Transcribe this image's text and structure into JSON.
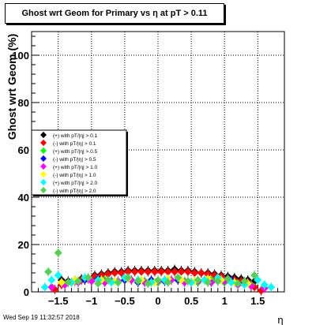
{
  "title": "Ghost wrt Geom for Primary vs    η at pT > 0.11",
  "date": "Wed Sep 19 11:32:57 2018",
  "chart_data": {
    "type": "scatter",
    "title": "Ghost wrt Geom for Primary vs    η at pT > 0.11",
    "xlabel": "η",
    "ylabel": "Ghost wrt Geom (%)",
    "xlim": [
      -1.9,
      1.9
    ],
    "ylim": [
      0,
      110
    ],
    "xticks": [
      -1.5,
      -1,
      -0.5,
      0,
      0.5,
      1,
      1.5
    ],
    "xtick_labels": [
      "−1.5",
      "−1",
      "−0.5",
      "0",
      "0.5",
      "1",
      "1.5"
    ],
    "yticks": [
      0,
      20,
      40,
      60,
      80,
      100
    ],
    "ytick_labels": [
      "0",
      "20",
      "40",
      "60",
      "80",
      "100"
    ],
    "grid": true,
    "legend_position": "middle-left",
    "series": [
      {
        "name": "(+) with pT/|η| > 0.1",
        "color": "#000000",
        "x": [
          -1.45,
          -1.35,
          -1.25,
          -1.15,
          -1.05,
          -0.95,
          -0.85,
          -0.75,
          -0.65,
          -0.55,
          -0.45,
          -0.35,
          -0.25,
          -0.15,
          -0.05,
          0.05,
          0.15,
          0.25,
          0.35,
          0.45,
          0.55,
          0.65,
          0.75,
          0.85,
          0.95,
          1.05,
          1.15,
          1.25,
          1.35,
          1.45
        ],
        "y": [
          5,
          4.5,
          5,
          5.5,
          6,
          7,
          7.5,
          8,
          8.5,
          8.5,
          9,
          9,
          9,
          9,
          9,
          9,
          9,
          9.5,
          9,
          9,
          8.5,
          8,
          8,
          7.5,
          7,
          6.5,
          6,
          5.5,
          5,
          4.5
        ]
      },
      {
        "name": "(-) with pT/|η| > 0.1",
        "color": "#ff0000",
        "x": [
          -1.55,
          -1.45,
          -1.35,
          -1.25,
          -1.15,
          -1.05,
          -0.95,
          -0.85,
          -0.75,
          -0.65,
          -0.55,
          -0.45,
          -0.35,
          -0.25,
          -0.15,
          -0.05,
          0.05,
          0.15,
          0.25,
          0.35,
          0.45,
          0.55,
          0.65,
          0.75,
          0.85,
          0.95,
          1.05,
          1.15,
          1.25,
          1.35,
          1.45,
          1.55
        ],
        "y": [
          1,
          3,
          4,
          4.5,
          5,
          5.5,
          6.5,
          7,
          7.5,
          8,
          8,
          8.5,
          8.5,
          8.5,
          8.5,
          8.5,
          8.5,
          8.5,
          8.5,
          8.5,
          8.5,
          8,
          8,
          7.5,
          7,
          6.5,
          5.5,
          5,
          4.5,
          4,
          2,
          0.5
        ]
      },
      {
        "name": "(+) with pT/|η| > 0.5",
        "color": "#00ff00",
        "x": [
          -1.4,
          -1.2,
          -1.0,
          -0.8,
          -0.6,
          -0.4,
          -0.2,
          0.0,
          0.2,
          0.4,
          0.6,
          0.8,
          1.0,
          1.2,
          1.4
        ],
        "y": [
          3,
          4,
          4.5,
          5,
          4,
          5,
          4.5,
          4,
          5,
          4.5,
          4,
          5,
          4,
          3.5,
          3
        ]
      },
      {
        "name": "(-) with pT/|η| > 0.5",
        "color": "#0000ff",
        "x": [
          -1.3,
          -1.1,
          -0.9,
          -0.7,
          -0.5,
          -0.3,
          -0.1,
          0.1,
          0.3,
          0.5,
          0.7,
          0.9,
          1.1,
          1.3
        ],
        "y": [
          4,
          5,
          5.5,
          4.5,
          5,
          4,
          5,
          4.5,
          5,
          4,
          5,
          4.5,
          5,
          4
        ]
      },
      {
        "name": "(+) with pT/|η| > 1.0",
        "color": "#ff00ff",
        "x": [
          -1.6,
          -1.4,
          -1.2,
          -1.0,
          -0.8,
          -0.6,
          -0.4,
          -0.2,
          0.0,
          0.2,
          0.4,
          0.6,
          0.8,
          1.0,
          1.2,
          1.4,
          1.6
        ],
        "y": [
          2,
          3,
          4,
          4.5,
          4,
          4.5,
          5,
          4,
          4.5,
          5,
          4,
          4.5,
          4,
          4.5,
          3,
          2.5,
          1.5
        ]
      },
      {
        "name": "(-) with pT/|η| > 1.0",
        "color": "#ffff00",
        "x": [
          -1.45,
          -1.25,
          -1.05,
          -0.85,
          -0.65,
          -0.45,
          -0.25,
          -0.05,
          0.15,
          0.35,
          0.55,
          0.75,
          0.95,
          1.15,
          1.35
        ],
        "y": [
          4,
          5,
          6,
          5,
          4.5,
          5.5,
          5,
          4,
          5.5,
          5,
          4.5,
          5.5,
          5,
          4,
          3.5
        ]
      },
      {
        "name": "(+) with pT/|η| > 2.0",
        "color": "#00ffff",
        "x": [
          -1.7,
          -1.6,
          -1.5,
          -1.3,
          -1.1,
          -0.9,
          -0.7,
          -0.5,
          -0.3,
          -0.1,
          0.1,
          0.3,
          0.5,
          0.7,
          0.9,
          1.1,
          1.3,
          1.5,
          1.6,
          1.7
        ],
        "y": [
          2,
          5,
          7,
          4,
          6,
          5,
          4,
          6,
          5,
          4,
          5,
          6,
          4,
          5,
          6,
          4,
          3,
          5,
          3,
          2
        ]
      },
      {
        "name": "(-) with pT/|η| > 2.0",
        "color": "#55d055",
        "x": [
          -1.65,
          -1.5,
          -1.35,
          -1.2,
          -1.05,
          -0.9,
          -0.75,
          -0.6,
          -0.45,
          -0.3,
          -0.15,
          0.0,
          0.15,
          0.3,
          0.45,
          0.6,
          0.75,
          0.9,
          1.05,
          1.2,
          1.3,
          1.45
        ],
        "y": [
          8.5,
          16.5,
          4,
          4.5,
          6,
          3.5,
          5,
          4,
          6,
          4.5,
          3.5,
          5,
          4,
          6,
          4.5,
          5,
          4,
          4.5,
          5.5,
          3.5,
          4.5,
          7
        ]
      }
    ]
  }
}
